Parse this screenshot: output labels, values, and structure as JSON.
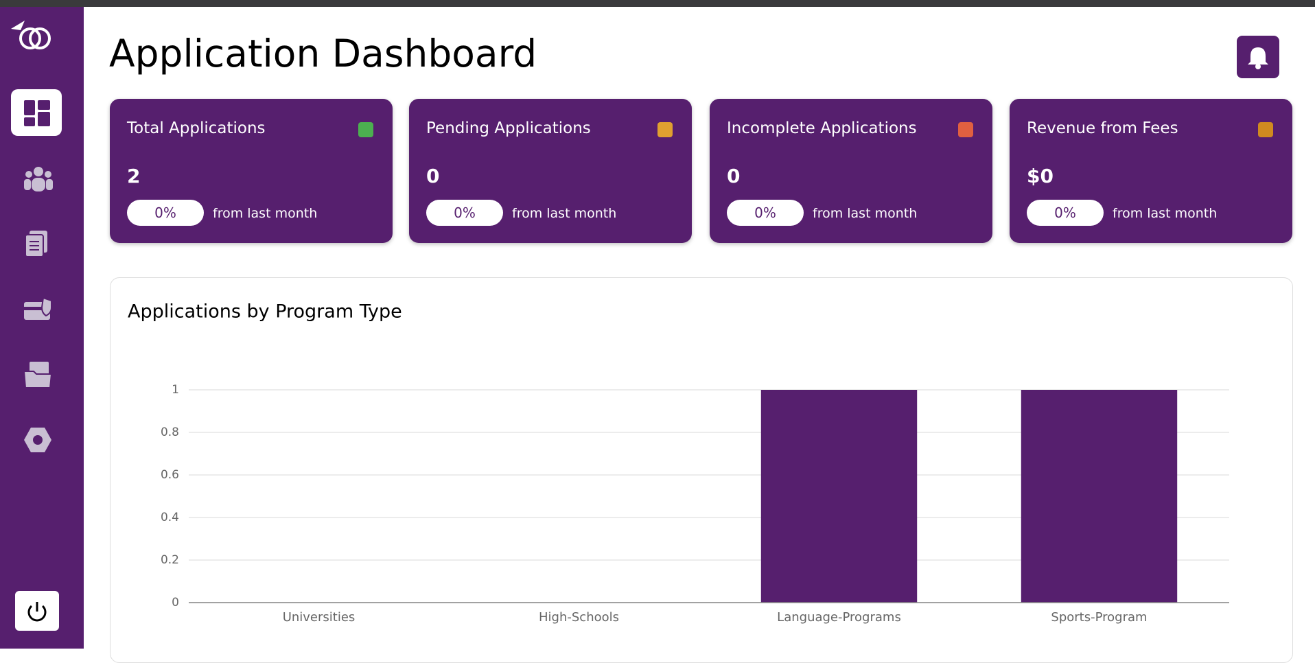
{
  "header": {
    "title": "Application Dashboard"
  },
  "cards": [
    {
      "title": "Total Applications",
      "value": "2",
      "change": "0%",
      "note": "from last month"
    },
    {
      "title": "Pending Applications",
      "value": "0",
      "change": "0%",
      "note": "from last month"
    },
    {
      "title": "Incomplete Applications",
      "value": "0",
      "change": "0%",
      "note": "from last month"
    },
    {
      "title": "Revenue from Fees",
      "value": "$0",
      "change": "0%",
      "note": "from last month"
    }
  ],
  "chart_data": {
    "type": "bar",
    "title": "Applications by Program Type",
    "categories": [
      "Universities",
      "High-Schools",
      "Language-Programs",
      "Sports-Program"
    ],
    "values": [
      0,
      0,
      1,
      1
    ],
    "color": "#561f6e",
    "ylim": [
      0,
      1
    ],
    "yticks": [
      0,
      0.2,
      0.4,
      0.6,
      0.8,
      1
    ],
    "grid": true
  }
}
